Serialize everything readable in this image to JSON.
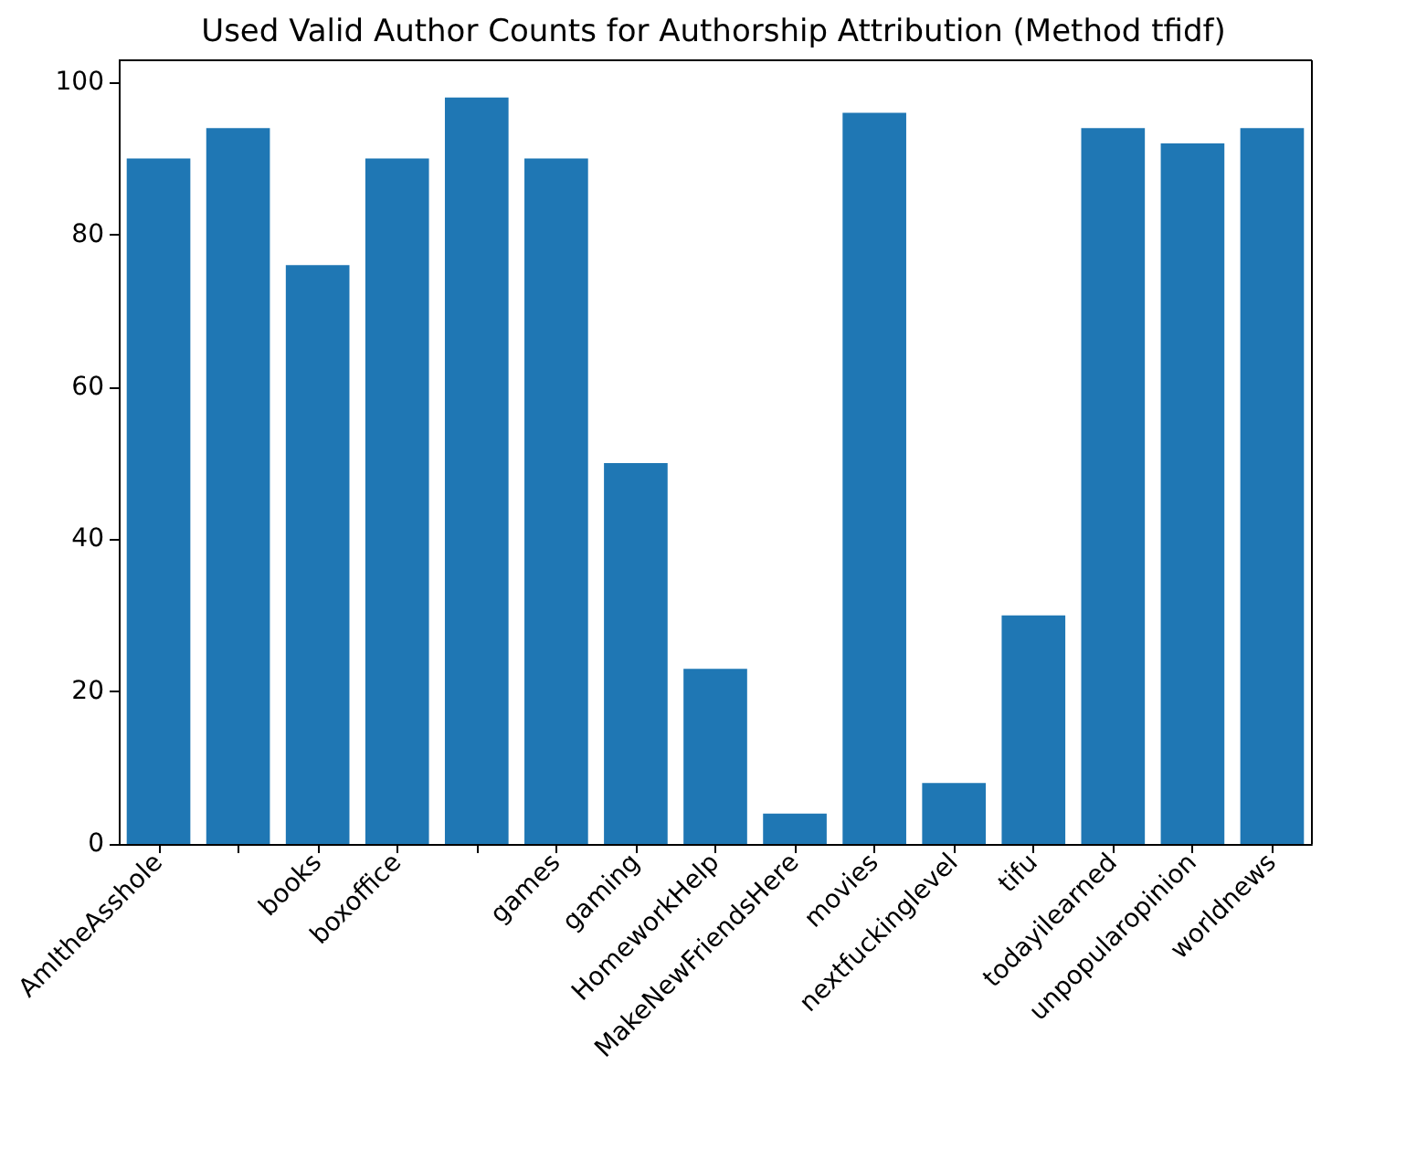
{
  "chart_data": {
    "type": "bar",
    "title": "Used Valid Author Counts for Authorship Attribution (Method tfidf)",
    "categories": [
      "AmItheAsshole",
      null,
      "books",
      "boxoffice",
      null,
      "games",
      "gaming",
      "HomeworkHelp",
      "MakeNewFriendsHere",
      "movies",
      "nextfuckinglevel",
      "tifu",
      "todayilearned",
      "unpopularopinion",
      "worldnews"
    ],
    "values": [
      90,
      94,
      76,
      90,
      98,
      90,
      50,
      23,
      4,
      96,
      8,
      30,
      94,
      92,
      94
    ],
    "color": "#1f77b4",
    "ylim": [
      0,
      102.9
    ],
    "yticks": [
      0,
      20,
      40,
      60,
      80,
      100
    ],
    "grid": false
  }
}
